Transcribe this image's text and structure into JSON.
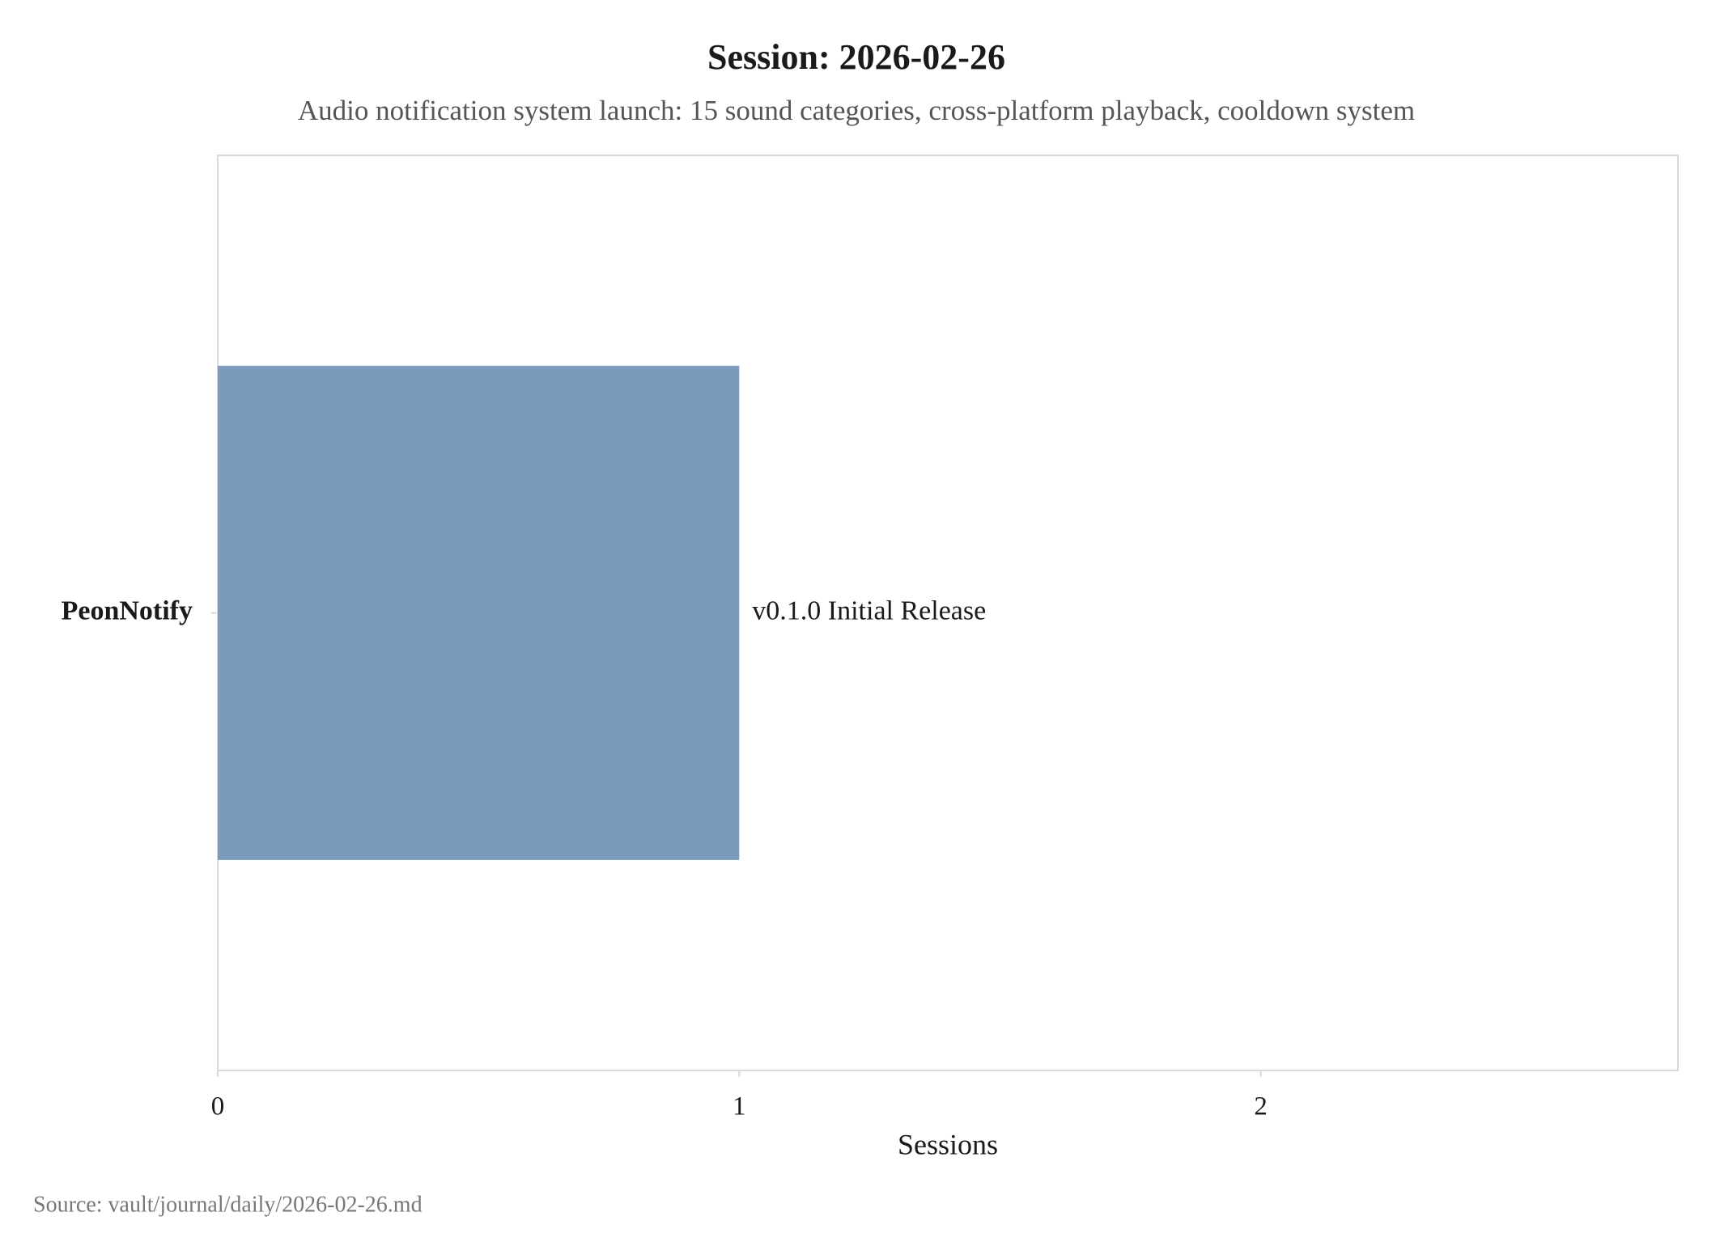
{
  "chart_data": {
    "type": "bar",
    "orientation": "horizontal",
    "title": "Session: 2026-02-26",
    "subtitle": "Audio notification system launch: 15 sound categories, cross-platform playback, cooldown system",
    "categories": [
      "PeonNotify"
    ],
    "values": [
      1
    ],
    "bar_labels": [
      "v0.1.0 Initial Release"
    ],
    "color": "#7b9bbd",
    "xlabel": "Sessions",
    "xlim": [
      0,
      2.8
    ],
    "xticks": [
      0,
      1,
      2
    ],
    "grid": false,
    "source": "Source: vault/journal/daily/2026-02-26.md"
  }
}
